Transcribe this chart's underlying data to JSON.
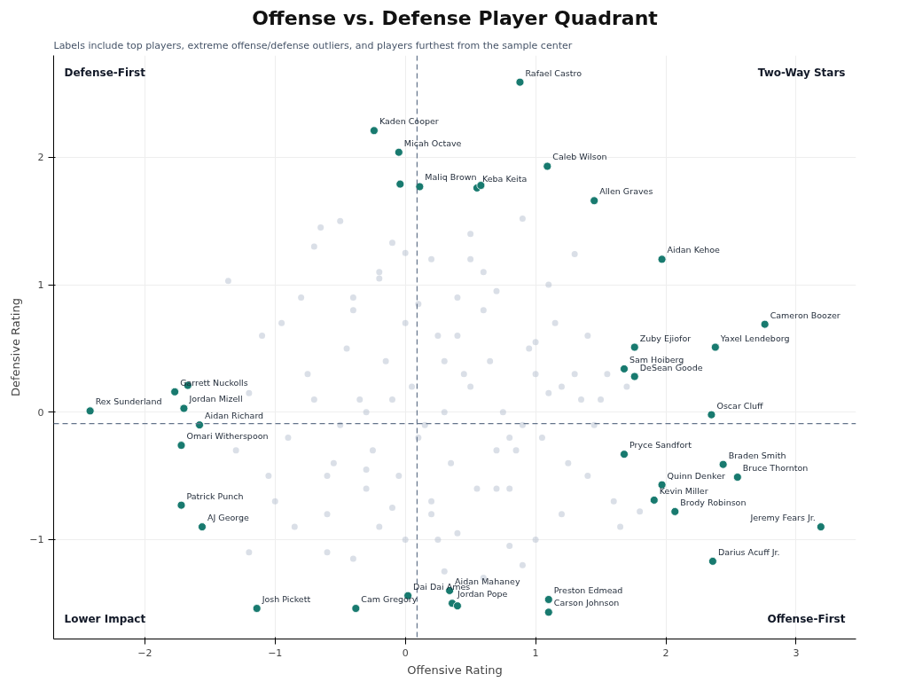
{
  "chart_data": {
    "type": "scatter",
    "title": "Offense vs. Defense Player Quadrant",
    "subtitle": "Labels include top players, extreme offense/defense outliers, and players furthest from the sample center",
    "xlabel": "Offensive Rating",
    "ylabel": "Defensive Rating",
    "xlim": [
      -2.7,
      3.46
    ],
    "ylim": [
      -1.78,
      2.8
    ],
    "xticks": [
      -2,
      -1,
      0,
      1,
      2,
      3
    ],
    "yticks": [
      -1,
      0,
      1,
      2
    ],
    "grid": true,
    "marker": "circle",
    "ref_lines": [
      {
        "axis": "x",
        "value": 0.09,
        "color": "#64748b",
        "line_style": "dashed"
      },
      {
        "axis": "y",
        "value": -0.09,
        "color": "#64748b",
        "line_style": "dashed"
      }
    ],
    "series": [
      {
        "color": "#a3afc2",
        "x": [
          -1.36,
          -1.2,
          -1.05,
          -0.95,
          -0.85,
          -0.7,
          -0.6,
          -0.5,
          -0.4,
          -0.3,
          -0.2,
          -0.1,
          0.0,
          0.1,
          0.2,
          0.3,
          0.4,
          0.5,
          0.6,
          0.7,
          0.8,
          0.9,
          1.0,
          1.1,
          1.2,
          1.3,
          1.4,
          1.5,
          1.6,
          1.7,
          1.8,
          -1.3,
          -1.1,
          -0.9,
          -0.75,
          -0.55,
          -0.45,
          -0.35,
          -0.25,
          -0.15,
          -0.05,
          0.05,
          0.15,
          0.25,
          0.35,
          0.45,
          0.55,
          0.65,
          0.75,
          0.85,
          0.95,
          1.05,
          1.15,
          1.25,
          1.35,
          1.45,
          1.55,
          1.65,
          -1.0,
          -0.8,
          -0.6,
          -0.4,
          -0.2,
          0.0,
          0.2,
          0.4,
          0.6,
          0.8,
          1.0,
          1.2,
          1.4,
          -0.7,
          -0.5,
          -0.3,
          -0.1,
          0.1,
          0.3,
          0.5,
          0.7,
          0.9,
          1.1,
          -0.6,
          -0.2,
          0.2,
          0.6,
          1.0,
          -0.4,
          0.0,
          0.4,
          0.8,
          -0.3,
          0.3,
          0.7,
          -0.1,
          0.5,
          1.3,
          -1.2,
          0.9,
          -0.65,
          0.25
        ],
        "values": [
          1.03,
          0.15,
          -0.5,
          0.7,
          -0.9,
          1.3,
          -1.1,
          1.5,
          0.9,
          -0.6,
          1.1,
          1.33,
          -1.0,
          0.85,
          1.2,
          -1.25,
          0.6,
          1.2,
          -1.3,
          0.95,
          -1.05,
          1.52,
          -1.0,
          1.0,
          0.2,
          0.3,
          -0.5,
          0.1,
          -0.7,
          0.2,
          -0.78,
          -0.3,
          0.6,
          -0.2,
          0.3,
          -0.4,
          0.5,
          0.1,
          -0.3,
          0.4,
          -0.5,
          0.2,
          -0.1,
          0.6,
          -0.4,
          0.3,
          -0.6,
          0.4,
          0.0,
          -0.3,
          0.5,
          -0.2,
          0.7,
          -0.4,
          0.1,
          -0.1,
          0.3,
          -0.9,
          -0.7,
          0.9,
          -0.8,
          0.8,
          -0.9,
          0.7,
          -0.7,
          0.9,
          0.8,
          -0.6,
          0.3,
          -0.8,
          0.6,
          0.1,
          -0.1,
          0.0,
          0.1,
          -0.2,
          0.0,
          0.2,
          -0.3,
          -0.1,
          0.15,
          -0.5,
          1.05,
          -0.8,
          1.1,
          0.55,
          -1.15,
          1.25,
          -0.95,
          -0.2,
          -0.45,
          0.4,
          -0.6,
          -0.75,
          1.4,
          1.24,
          -1.1,
          -1.2,
          1.45,
          -1.0
        ]
      },
      {
        "color": "#187a6f",
        "x": [
          0.88,
          -0.24,
          -0.05,
          1.09,
          -0.04,
          0.11,
          0.55,
          0.58,
          1.45,
          1.97,
          2.76,
          1.76,
          2.38,
          1.68,
          1.76,
          2.35,
          1.68,
          2.44,
          2.55,
          1.97,
          1.91,
          2.07,
          3.19,
          2.36,
          -2.42,
          -1.77,
          -1.67,
          -1.7,
          -1.58,
          -1.72,
          -1.72,
          -1.56,
          -1.14,
          -0.38,
          0.02,
          0.34,
          0.36,
          0.4,
          1.1,
          1.1
        ],
        "values": [
          2.59,
          2.21,
          2.04,
          1.93,
          1.79,
          1.77,
          1.76,
          1.78,
          1.66,
          1.2,
          0.69,
          0.51,
          0.51,
          0.34,
          0.28,
          -0.02,
          -0.33,
          -0.41,
          -0.51,
          -0.57,
          -0.69,
          -0.78,
          -0.9,
          -1.17,
          0.01,
          0.16,
          0.21,
          0.03,
          -0.1,
          -0.26,
          -0.73,
          -0.9,
          -1.54,
          -1.54,
          -1.44,
          -1.4,
          -1.5,
          -1.52,
          -1.47,
          -1.57
        ]
      }
    ],
    "annotations": [
      "Defense-First",
      "Two-Way Stars",
      "Lower Impact",
      "Offense-First",
      {
        "text": "Rafael Castro",
        "x": 0.88,
        "y": 2.59
      },
      {
        "text": "Kaden Cooper",
        "x": -0.24,
        "y": 2.21
      },
      {
        "text": "Micah Octave",
        "x": -0.05,
        "y": 2.04
      },
      {
        "text": "Caleb Wilson",
        "x": 1.09,
        "y": 1.93
      },
      {
        "text": "Maliq Brown",
        "x": 0.11,
        "y": 1.77
      },
      {
        "text": "Keba Keita",
        "x": 0.55,
        "y": 1.76
      },
      {
        "text": "Allen Graves",
        "x": 1.45,
        "y": 1.66
      },
      {
        "text": "Aidan Kehoe",
        "x": 1.97,
        "y": 1.2
      },
      {
        "text": "Cameron Boozer",
        "x": 2.76,
        "y": 0.69
      },
      {
        "text": "Zuby Ejiofor",
        "x": 1.76,
        "y": 0.51
      },
      {
        "text": "Yaxel Lendeborg",
        "x": 2.38,
        "y": 0.51
      },
      {
        "text": "Sam Hoiberg",
        "x": 1.68,
        "y": 0.34
      },
      {
        "text": "DeSean Goode",
        "x": 1.76,
        "y": 0.28
      },
      {
        "text": "Oscar Cluff",
        "x": 2.35,
        "y": -0.02
      },
      {
        "text": "Pryce Sandfort",
        "x": 1.68,
        "y": -0.33
      },
      {
        "text": "Braden Smith",
        "x": 2.44,
        "y": -0.41
      },
      {
        "text": "Bruce Thornton",
        "x": 2.55,
        "y": -0.51
      },
      {
        "text": "Quinn Denker",
        "x": 1.97,
        "y": -0.57
      },
      {
        "text": "Kevin Miller",
        "x": 1.91,
        "y": -0.69
      },
      {
        "text": "Brody Robinson",
        "x": 2.07,
        "y": -0.78
      },
      {
        "text": "Jeremy Fears Jr.",
        "x": 3.19,
        "y": -0.9
      },
      {
        "text": "Darius Acuff Jr.",
        "x": 2.36,
        "y": -1.17
      },
      {
        "text": "Rex Sunderland",
        "x": -2.42,
        "y": 0.01
      },
      {
        "text": "Garrett Nuckolls",
        "x": -1.77,
        "y": 0.16
      },
      {
        "text": "Jordan Mizell",
        "x": -1.7,
        "y": 0.03
      },
      {
        "text": "Aidan Richard",
        "x": -1.58,
        "y": -0.1
      },
      {
        "text": "Omari Witherspoon",
        "x": -1.72,
        "y": -0.26
      },
      {
        "text": "Patrick Punch",
        "x": -1.72,
        "y": -0.73
      },
      {
        "text": "AJ George",
        "x": -1.56,
        "y": -0.9
      },
      {
        "text": "Josh Pickett",
        "x": -1.14,
        "y": -1.54
      },
      {
        "text": "Cam Gregory",
        "x": -0.38,
        "y": -1.54
      },
      {
        "text": "Dai Dai Ames",
        "x": 0.02,
        "y": -1.44
      },
      {
        "text": "Aidan Mahaney",
        "x": 0.34,
        "y": -1.4
      },
      {
        "text": "Jordan Pope",
        "x": 0.36,
        "y": -1.5
      },
      {
        "text": "Preston Edmead",
        "x": 1.1,
        "y": -1.47
      },
      {
        "text": "Carson Johnson",
        "x": 1.1,
        "y": -1.57
      }
    ]
  }
}
